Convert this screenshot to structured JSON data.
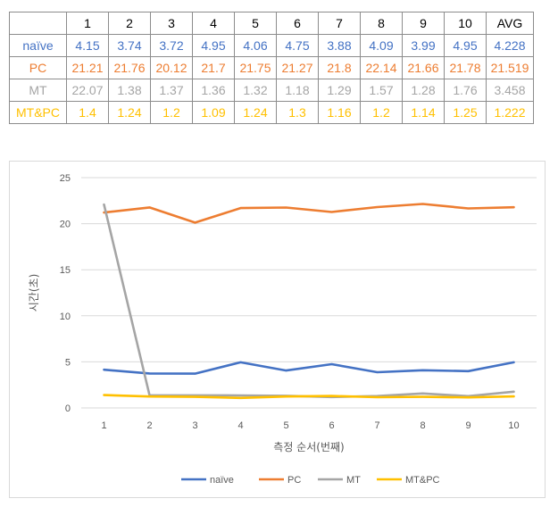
{
  "table": {
    "headers": [
      "1",
      "2",
      "3",
      "4",
      "5",
      "6",
      "7",
      "8",
      "9",
      "10",
      "AVG"
    ],
    "rows": [
      {
        "label": "naïve",
        "color": "#4472c4",
        "values": [
          "4.15",
          "3.74",
          "3.72",
          "4.95",
          "4.06",
          "4.75",
          "3.88",
          "4.09",
          "3.99",
          "4.95",
          "4.228"
        ]
      },
      {
        "label": "PC",
        "color": "#ed7d31",
        "values": [
          "21.21",
          "21.76",
          "20.12",
          "21.7",
          "21.75",
          "21.27",
          "21.8",
          "22.14",
          "21.66",
          "21.78",
          "21.519"
        ]
      },
      {
        "label": "MT",
        "color": "#a5a5a5",
        "values": [
          "22.07",
          "1.38",
          "1.37",
          "1.36",
          "1.32",
          "1.18",
          "1.29",
          "1.57",
          "1.28",
          "1.76",
          "3.458"
        ]
      },
      {
        "label": "MT&PC",
        "color": "#ffc000",
        "values": [
          "1.4",
          "1.24",
          "1.2",
          "1.09",
          "1.24",
          "1.3",
          "1.16",
          "1.2",
          "1.14",
          "1.25",
          "1.222"
        ]
      }
    ]
  },
  "chart_data": {
    "type": "line",
    "categories": [
      "1",
      "2",
      "3",
      "4",
      "5",
      "6",
      "7",
      "8",
      "9",
      "10"
    ],
    "series": [
      {
        "name": "naïve",
        "color": "#4472c4",
        "values": [
          4.15,
          3.74,
          3.72,
          4.95,
          4.06,
          4.75,
          3.88,
          4.09,
          3.99,
          4.95
        ]
      },
      {
        "name": "PC",
        "color": "#ed7d31",
        "values": [
          21.21,
          21.76,
          20.12,
          21.7,
          21.75,
          21.27,
          21.8,
          22.14,
          21.66,
          21.78
        ]
      },
      {
        "name": "MT",
        "color": "#a5a5a5",
        "values": [
          22.07,
          1.38,
          1.37,
          1.36,
          1.32,
          1.18,
          1.29,
          1.57,
          1.28,
          1.76
        ]
      },
      {
        "name": "MT&PC",
        "color": "#ffc000",
        "values": [
          1.4,
          1.24,
          1.2,
          1.09,
          1.24,
          1.3,
          1.16,
          1.2,
          1.14,
          1.25
        ]
      }
    ],
    "title": "",
    "xlabel": "측정 순서(번째)",
    "ylabel": "시간(초)",
    "ylim": [
      0,
      25
    ],
    "yticks": [
      0,
      5,
      10,
      15,
      20,
      25
    ],
    "grid": true,
    "legend": "bottom"
  }
}
